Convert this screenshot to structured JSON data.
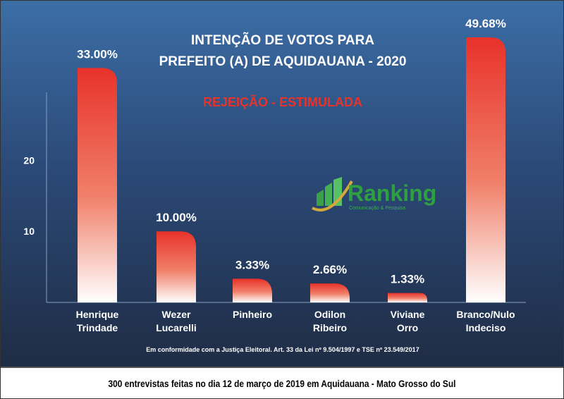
{
  "chart_data": {
    "type": "bar",
    "title": "INTENÇÃO DE VOTOS PARA\nPREFEITO (A) DE AQUIDAUANA - 2020",
    "subtitle": "REJEIÇÃO - ESTIMULADA",
    "categories": [
      "Henrique Trindade",
      "Wezer Lucarelli",
      "Pinheiro",
      "Odilon Ribeiro",
      "Viviane Orro",
      "Branco/Nulo Indeciso"
    ],
    "values": [
      33.0,
      10.0,
      3.33,
      2.66,
      1.33,
      49.68
    ],
    "data_labels": [
      "33.00%",
      "10.00%",
      "3.33%",
      "2.66%",
      "1.33%",
      "49.68%"
    ],
    "yticks": [
      "10",
      "20"
    ],
    "ylim": [
      0,
      37
    ],
    "grid": false,
    "colors": {
      "bar_top": "#e8322a",
      "bar_bottom": "#ffffff",
      "title": "#ffffff",
      "subtitle": "#e8322a"
    }
  },
  "title_lines": [
    "INTENÇÃO DE VOTOS PARA",
    "PREFEITO (A) DE AQUIDAUANA - 2020"
  ],
  "note": "Em conformidade com a Justiça Eleitoral. Art. 33 da Lei nº 9.504/1997 e TSE nº 23.549/2017",
  "footer": "300 entrevistas feitas no dia 12 de março de 2019 em Aquidauana - Mato Grosso do Sul",
  "logo": {
    "name": "Ranking",
    "tagline": "Comunicação & Pesquisa"
  }
}
